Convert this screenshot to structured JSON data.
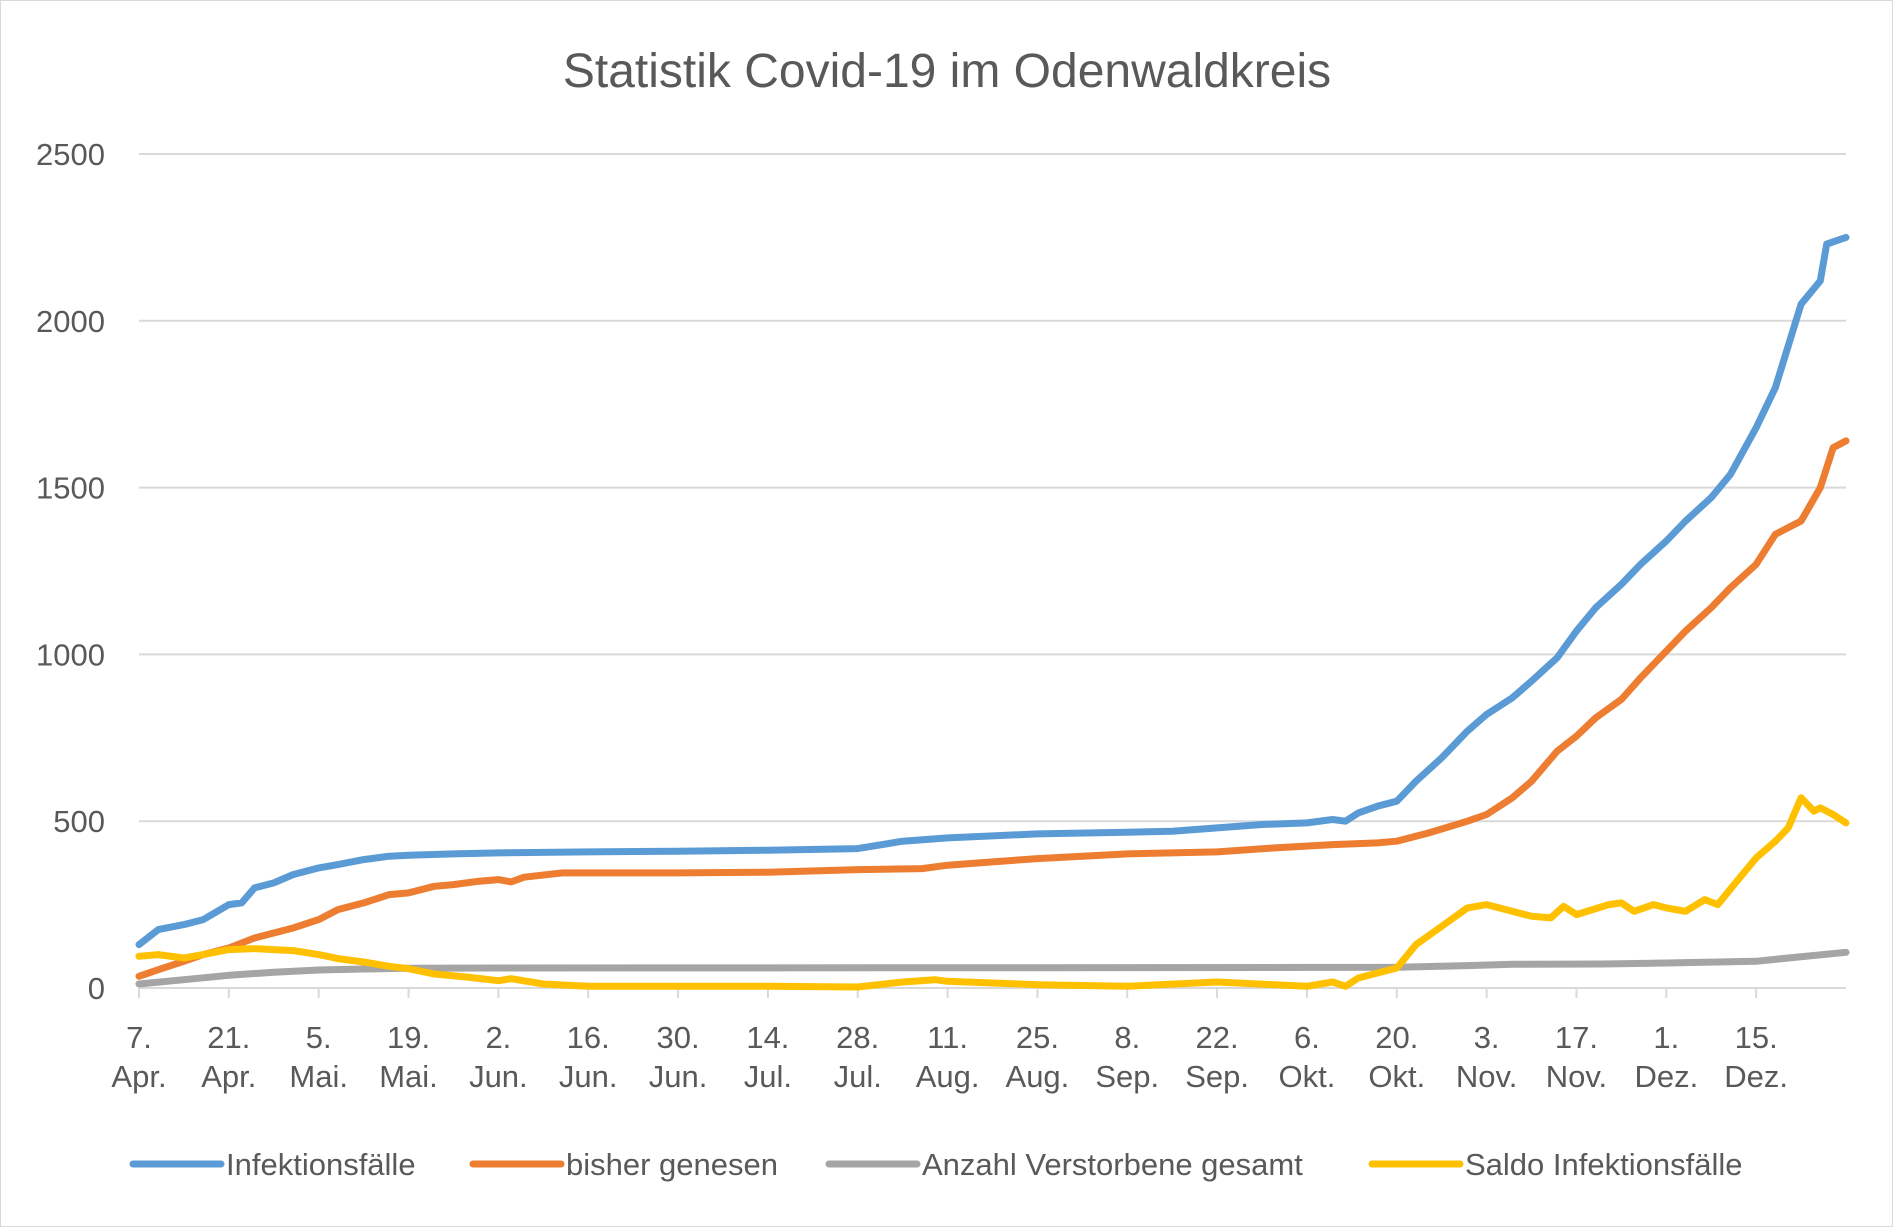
{
  "chart_data": {
    "type": "line",
    "title": "Statistik Covid-19 im Odenwaldkreis",
    "xlabel": "",
    "ylabel": "",
    "ylim": [
      0,
      2500
    ],
    "yticks": [
      0,
      500,
      1000,
      1500,
      2000,
      2500
    ],
    "grid": true,
    "legend": "bottom",
    "x_range": [
      "2020-04-07",
      "2020-12-29"
    ],
    "x_ticks": [
      {
        "date": "2020-04-07",
        "line1": "7.",
        "line2": "Apr."
      },
      {
        "date": "2020-04-21",
        "line1": "21.",
        "line2": "Apr."
      },
      {
        "date": "2020-05-05",
        "line1": "5.",
        "line2": "Mai."
      },
      {
        "date": "2020-05-19",
        "line1": "19.",
        "line2": "Mai."
      },
      {
        "date": "2020-06-02",
        "line1": "2.",
        "line2": "Jun."
      },
      {
        "date": "2020-06-16",
        "line1": "16.",
        "line2": "Jun."
      },
      {
        "date": "2020-06-30",
        "line1": "30.",
        "line2": "Jun."
      },
      {
        "date": "2020-07-14",
        "line1": "14.",
        "line2": "Jul."
      },
      {
        "date": "2020-07-28",
        "line1": "28.",
        "line2": "Jul."
      },
      {
        "date": "2020-08-11",
        "line1": "11.",
        "line2": "Aug."
      },
      {
        "date": "2020-08-25",
        "line1": "25.",
        "line2": "Aug."
      },
      {
        "date": "2020-09-08",
        "line1": "8.",
        "line2": "Sep."
      },
      {
        "date": "2020-09-22",
        "line1": "22.",
        "line2": "Sep."
      },
      {
        "date": "2020-10-06",
        "line1": "6.",
        "line2": "Okt."
      },
      {
        "date": "2020-10-20",
        "line1": "20.",
        "line2": "Okt."
      },
      {
        "date": "2020-11-03",
        "line1": "3.",
        "line2": "Nov."
      },
      {
        "date": "2020-11-17",
        "line1": "17.",
        "line2": "Nov."
      },
      {
        "date": "2020-12-01",
        "line1": "1.",
        "line2": "Dez."
      },
      {
        "date": "2020-12-15",
        "line1": "15.",
        "line2": "Dez."
      }
    ],
    "series": [
      {
        "name": "Infektionsfälle",
        "color": "#5b9bd5",
        "points": [
          [
            "2020-04-07",
            130
          ],
          [
            "2020-04-10",
            175
          ],
          [
            "2020-04-14",
            190
          ],
          [
            "2020-04-17",
            205
          ],
          [
            "2020-04-21",
            250
          ],
          [
            "2020-04-23",
            255
          ],
          [
            "2020-04-25",
            300
          ],
          [
            "2020-04-28",
            315
          ],
          [
            "2020-05-01",
            340
          ],
          [
            "2020-05-05",
            360
          ],
          [
            "2020-05-08",
            370
          ],
          [
            "2020-05-12",
            385
          ],
          [
            "2020-05-16",
            395
          ],
          [
            "2020-05-19",
            398
          ],
          [
            "2020-05-26",
            402
          ],
          [
            "2020-06-02",
            405
          ],
          [
            "2020-06-16",
            408
          ],
          [
            "2020-06-30",
            410
          ],
          [
            "2020-07-14",
            413
          ],
          [
            "2020-07-28",
            418
          ],
          [
            "2020-08-04",
            440
          ],
          [
            "2020-08-11",
            450
          ],
          [
            "2020-08-18",
            456
          ],
          [
            "2020-08-25",
            462
          ],
          [
            "2020-09-08",
            467
          ],
          [
            "2020-09-15",
            470
          ],
          [
            "2020-09-22",
            480
          ],
          [
            "2020-09-29",
            490
          ],
          [
            "2020-10-06",
            495
          ],
          [
            "2020-10-10",
            505
          ],
          [
            "2020-10-12",
            500
          ],
          [
            "2020-10-14",
            525
          ],
          [
            "2020-10-17",
            545
          ],
          [
            "2020-10-20",
            560
          ],
          [
            "2020-10-23",
            620
          ],
          [
            "2020-10-27",
            690
          ],
          [
            "2020-10-31",
            770
          ],
          [
            "2020-11-03",
            820
          ],
          [
            "2020-11-07",
            870
          ],
          [
            "2020-11-10",
            920
          ],
          [
            "2020-11-14",
            990
          ],
          [
            "2020-11-17",
            1070
          ],
          [
            "2020-11-20",
            1140
          ],
          [
            "2020-11-24",
            1210
          ],
          [
            "2020-11-27",
            1270
          ],
          [
            "2020-12-01",
            1340
          ],
          [
            "2020-12-04",
            1400
          ],
          [
            "2020-12-08",
            1470
          ],
          [
            "2020-12-11",
            1540
          ],
          [
            "2020-12-15",
            1680
          ],
          [
            "2020-12-18",
            1800
          ],
          [
            "2020-12-22",
            2050
          ],
          [
            "2020-12-25",
            2120
          ],
          [
            "2020-12-26",
            2230
          ],
          [
            "2020-12-29",
            2250
          ]
        ]
      },
      {
        "name": "bisher genesen",
        "color": "#ed7d31",
        "points": [
          [
            "2020-04-07",
            35
          ],
          [
            "2020-04-10",
            55
          ],
          [
            "2020-04-14",
            80
          ],
          [
            "2020-04-17",
            100
          ],
          [
            "2020-04-21",
            120
          ],
          [
            "2020-04-25",
            150
          ],
          [
            "2020-04-28",
            165
          ],
          [
            "2020-05-01",
            180
          ],
          [
            "2020-05-05",
            205
          ],
          [
            "2020-05-08",
            235
          ],
          [
            "2020-05-12",
            255
          ],
          [
            "2020-05-16",
            280
          ],
          [
            "2020-05-19",
            285
          ],
          [
            "2020-05-23",
            305
          ],
          [
            "2020-05-26",
            310
          ],
          [
            "2020-05-30",
            320
          ],
          [
            "2020-06-02",
            325
          ],
          [
            "2020-06-04",
            318
          ],
          [
            "2020-06-06",
            332
          ],
          [
            "2020-06-12",
            345
          ],
          [
            "2020-06-30",
            345
          ],
          [
            "2020-07-14",
            347
          ],
          [
            "2020-07-28",
            355
          ],
          [
            "2020-08-07",
            358
          ],
          [
            "2020-08-11",
            368
          ],
          [
            "2020-08-18",
            378
          ],
          [
            "2020-08-25",
            388
          ],
          [
            "2020-09-08",
            402
          ],
          [
            "2020-09-22",
            408
          ],
          [
            "2020-10-01",
            420
          ],
          [
            "2020-10-10",
            430
          ],
          [
            "2020-10-17",
            435
          ],
          [
            "2020-10-20",
            440
          ],
          [
            "2020-10-25",
            465
          ],
          [
            "2020-10-31",
            500
          ],
          [
            "2020-11-03",
            520
          ],
          [
            "2020-11-07",
            570
          ],
          [
            "2020-11-10",
            620
          ],
          [
            "2020-11-14",
            710
          ],
          [
            "2020-11-17",
            755
          ],
          [
            "2020-11-20",
            810
          ],
          [
            "2020-11-24",
            865
          ],
          [
            "2020-11-27",
            930
          ],
          [
            "2020-12-01",
            1010
          ],
          [
            "2020-12-04",
            1070
          ],
          [
            "2020-12-08",
            1140
          ],
          [
            "2020-12-11",
            1200
          ],
          [
            "2020-12-15",
            1270
          ],
          [
            "2020-12-18",
            1360
          ],
          [
            "2020-12-22",
            1400
          ],
          [
            "2020-12-25",
            1500
          ],
          [
            "2020-12-27",
            1620
          ],
          [
            "2020-12-29",
            1640
          ]
        ]
      },
      {
        "name": "Anzahl Verstorbene gesamt",
        "color": "#a5a5a5",
        "points": [
          [
            "2020-04-07",
            12
          ],
          [
            "2020-04-14",
            25
          ],
          [
            "2020-04-21",
            38
          ],
          [
            "2020-04-28",
            47
          ],
          [
            "2020-05-05",
            54
          ],
          [
            "2020-05-12",
            57
          ],
          [
            "2020-05-19",
            59
          ],
          [
            "2020-06-02",
            60
          ],
          [
            "2020-08-25",
            61
          ],
          [
            "2020-10-20",
            62
          ],
          [
            "2020-10-31",
            67
          ],
          [
            "2020-11-07",
            71
          ],
          [
            "2020-11-21",
            72
          ],
          [
            "2020-12-01",
            75
          ],
          [
            "2020-12-15",
            80
          ],
          [
            "2020-12-20",
            90
          ],
          [
            "2020-12-29",
            107
          ]
        ]
      },
      {
        "name": "Saldo Infektionsfälle",
        "color": "#ffc000",
        "points": [
          [
            "2020-04-07",
            95
          ],
          [
            "2020-04-10",
            100
          ],
          [
            "2020-04-14",
            90
          ],
          [
            "2020-04-17",
            100
          ],
          [
            "2020-04-21",
            115
          ],
          [
            "2020-04-25",
            118
          ],
          [
            "2020-04-28",
            115
          ],
          [
            "2020-05-01",
            112
          ],
          [
            "2020-05-05",
            100
          ],
          [
            "2020-05-08",
            88
          ],
          [
            "2020-05-12",
            78
          ],
          [
            "2020-05-16",
            65
          ],
          [
            "2020-05-19",
            58
          ],
          [
            "2020-05-23",
            42
          ],
          [
            "2020-05-28",
            33
          ],
          [
            "2020-06-02",
            22
          ],
          [
            "2020-06-04",
            28
          ],
          [
            "2020-06-09",
            12
          ],
          [
            "2020-06-16",
            5
          ],
          [
            "2020-07-14",
            5
          ],
          [
            "2020-07-28",
            3
          ],
          [
            "2020-08-04",
            18
          ],
          [
            "2020-08-09",
            25
          ],
          [
            "2020-08-11",
            20
          ],
          [
            "2020-08-18",
            15
          ],
          [
            "2020-08-25",
            10
          ],
          [
            "2020-09-08",
            5
          ],
          [
            "2020-09-22",
            18
          ],
          [
            "2020-10-06",
            5
          ],
          [
            "2020-10-10",
            18
          ],
          [
            "2020-10-12",
            5
          ],
          [
            "2020-10-14",
            30
          ],
          [
            "2020-10-17",
            45
          ],
          [
            "2020-10-20",
            60
          ],
          [
            "2020-10-23",
            130
          ],
          [
            "2020-10-27",
            185
          ],
          [
            "2020-10-31",
            240
          ],
          [
            "2020-11-03",
            250
          ],
          [
            "2020-11-06",
            235
          ],
          [
            "2020-11-10",
            215
          ],
          [
            "2020-11-13",
            210
          ],
          [
            "2020-11-15",
            245
          ],
          [
            "2020-11-17",
            220
          ],
          [
            "2020-11-22",
            250
          ],
          [
            "2020-11-24",
            255
          ],
          [
            "2020-11-26",
            230
          ],
          [
            "2020-11-29",
            250
          ],
          [
            "2020-12-01",
            240
          ],
          [
            "2020-12-04",
            230
          ],
          [
            "2020-12-07",
            265
          ],
          [
            "2020-12-09",
            250
          ],
          [
            "2020-12-12",
            320
          ],
          [
            "2020-12-15",
            390
          ],
          [
            "2020-12-18",
            440
          ],
          [
            "2020-12-20",
            480
          ],
          [
            "2020-12-22",
            570
          ],
          [
            "2020-12-24",
            530
          ],
          [
            "2020-12-25",
            540
          ],
          [
            "2020-12-27",
            520
          ],
          [
            "2020-12-29",
            495
          ]
        ]
      }
    ]
  }
}
